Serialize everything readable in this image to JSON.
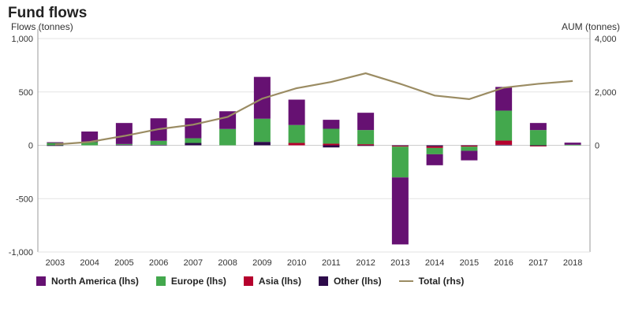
{
  "chart_data": {
    "type": "bar",
    "stacked": true,
    "title": "Fund flows",
    "ylabel": "Flows (tonnes)",
    "ylabel_right": "AUM (tonnes)",
    "ylim": [
      -1000,
      1000
    ],
    "ylim_right": [
      -4000,
      4000
    ],
    "yticks": [
      1000,
      500,
      0,
      -500,
      -1000
    ],
    "yticks_right": [
      4000,
      2000,
      0
    ],
    "ytick_labels": [
      "1,000",
      "500",
      "0",
      "-500",
      "-1,000"
    ],
    "ytick_labels_right": [
      "4,000",
      "2,000",
      "0"
    ],
    "grid": true,
    "legend": "bottom",
    "categories": [
      "2003",
      "2004",
      "2005",
      "2006",
      "2007",
      "2008",
      "2009",
      "2010",
      "2011",
      "2012",
      "2013",
      "2014",
      "2015",
      "2016",
      "2017",
      "2018"
    ],
    "series": [
      {
        "name": "North America (lhs)",
        "color": "#661172",
        "axis": "left",
        "type": "bar",
        "values": [
          7,
          99,
          197,
          211,
          187,
          166,
          392,
          238,
          84,
          162,
          -628,
          -103,
          -89,
          222,
          66,
          20
        ]
      },
      {
        "name": "Europe (lhs)",
        "color": "#43a84d",
        "axis": "left",
        "type": "bar",
        "values": [
          22,
          30,
          7,
          37,
          44,
          153,
          217,
          168,
          140,
          133,
          -288,
          -59,
          -39,
          281,
          143,
          5
        ]
      },
      {
        "name": "Asia (lhs)",
        "color": "#b5002d",
        "axis": "left",
        "type": "bar",
        "values": [
          0,
          0,
          0,
          0,
          0,
          0,
          0,
          22,
          15,
          10,
          -8,
          -15,
          -10,
          39,
          -5,
          0
        ]
      },
      {
        "name": "Other (lhs)",
        "color": "#2d0a4a",
        "axis": "left",
        "type": "bar",
        "values": [
          -3,
          0,
          5,
          5,
          22,
          0,
          32,
          0,
          -20,
          -5,
          -5,
          -10,
          -3,
          5,
          -5,
          0
        ]
      },
      {
        "name": "Total (rhs)",
        "color": "#9b8c63",
        "axis": "right",
        "type": "line",
        "values": [
          30,
          126,
          350,
          606,
          772,
          1065,
          1750,
          2140,
          2375,
          2700,
          2305,
          1865,
          1730,
          2160,
          2305,
          2410
        ]
      }
    ]
  }
}
